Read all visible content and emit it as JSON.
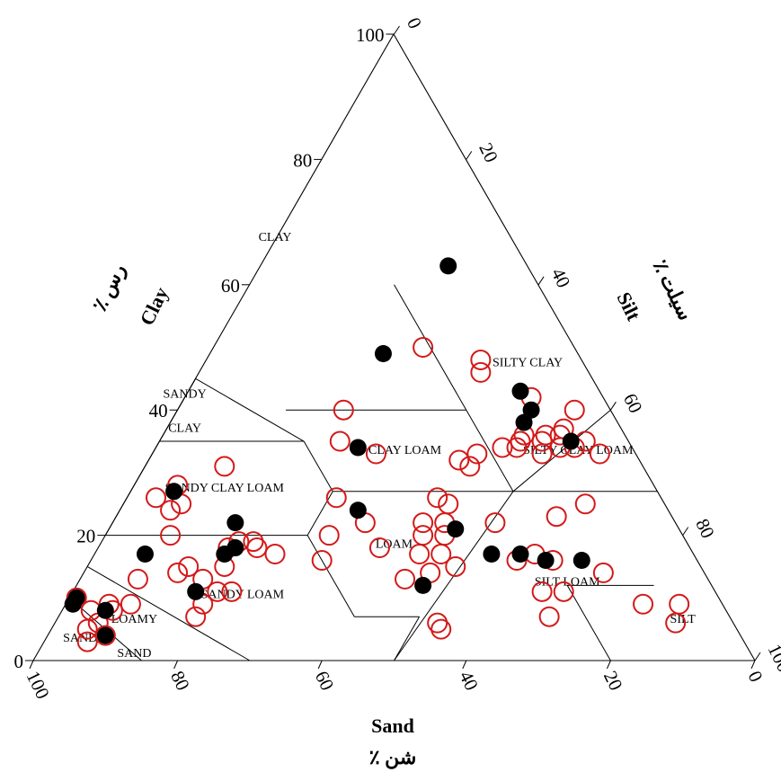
{
  "chart_data": {
    "type": "scatter",
    "subtype": "soil-texture-ternary",
    "axes": {
      "clay": {
        "title": "Clay",
        "title_fa": "رس ٪",
        "ticks": [
          "0",
          "20",
          "40",
          "60",
          "80",
          "100"
        ]
      },
      "silt": {
        "title": "Silt",
        "title_fa": "سیلت ٪",
        "ticks": [
          "0",
          "20",
          "40",
          "60",
          "80",
          "100"
        ]
      },
      "sand": {
        "title": "Sand",
        "title_fa": "شن ٪",
        "ticks": [
          "100",
          "80",
          "60",
          "40",
          "20",
          "0"
        ]
      }
    },
    "regions": [
      {
        "name": "CLAY",
        "lines": [
          "CLAY"
        ],
        "sand": 33,
        "clay": 67
      },
      {
        "name": "SILTY CLAY",
        "lines": [
          "SILTY CLAY"
        ],
        "sand": 8,
        "clay": 47
      },
      {
        "name": "SANDY CLAY",
        "lines": [
          "SANDY",
          "CLAY"
        ],
        "sand": 58,
        "clay": 42
      },
      {
        "name": "CLAY LOAM",
        "lines": [
          "CLAY LOAM"
        ],
        "sand": 32,
        "clay": 33
      },
      {
        "name": "SILTY CLAY LOAM",
        "lines": [
          "SILTY CLAY LOAM"
        ],
        "sand": 8,
        "clay": 33
      },
      {
        "name": "SANDY CLAY LOAM",
        "lines": [
          "SANDY CLAY LOAM"
        ],
        "sand": 60,
        "clay": 27
      },
      {
        "name": "LOAM",
        "lines": [
          "LOAM"
        ],
        "sand": 41,
        "clay": 18
      },
      {
        "name": "SANDY LOAM",
        "lines": [
          "SANDY LOAM"
        ],
        "sand": 66,
        "clay": 10
      },
      {
        "name": "SILT LOAM",
        "lines": [
          "SILT LOAM"
        ],
        "sand": 20,
        "clay": 12
      },
      {
        "name": "LOAMY SAND",
        "lines": [
          "LOAMY",
          "SAND"
        ],
        "sand": 83,
        "clay": 6
      },
      {
        "name": "SAND",
        "lines": [
          "SAND"
        ],
        "sand": 92,
        "clay": 3
      },
      {
        "name": "SILT",
        "lines": [
          "SILT"
        ],
        "sand": 7,
        "clay": 6
      }
    ],
    "series": [
      {
        "marker": "open-circle",
        "color": "#d41919",
        "points": [
          {
            "sand": 21,
            "clay": 50
          },
          {
            "sand": 15,
            "clay": 46
          },
          {
            "sand": 14,
            "clay": 48
          },
          {
            "sand": 10,
            "clay": 42
          },
          {
            "sand": 5,
            "clay": 40
          },
          {
            "sand": 8,
            "clay": 37
          },
          {
            "sand": 9,
            "clay": 36
          },
          {
            "sand": 6,
            "clay": 35
          },
          {
            "sand": 8,
            "clay": 34
          },
          {
            "sand": 5,
            "clay": 33
          },
          {
            "sand": 10,
            "clay": 34
          },
          {
            "sand": 13,
            "clay": 33
          },
          {
            "sand": 12,
            "clay": 35
          },
          {
            "sand": 16,
            "clay": 34
          },
          {
            "sand": 11,
            "clay": 36
          },
          {
            "sand": 15,
            "clay": 35
          },
          {
            "sand": 14,
            "clay": 36
          },
          {
            "sand": 18,
            "clay": 34
          },
          {
            "sand": 22,
            "clay": 33
          },
          {
            "sand": 24,
            "clay": 31
          },
          {
            "sand": 37,
            "clay": 40
          },
          {
            "sand": 40,
            "clay": 35
          },
          {
            "sand": 36,
            "clay": 33
          },
          {
            "sand": 25,
            "clay": 32
          },
          {
            "sand": 58,
            "clay": 31
          },
          {
            "sand": 66,
            "clay": 28
          },
          {
            "sand": 70,
            "clay": 26
          },
          {
            "sand": 67,
            "clay": 25
          },
          {
            "sand": 69,
            "clay": 24
          },
          {
            "sand": 71,
            "clay": 20
          },
          {
            "sand": 62,
            "clay": 19
          },
          {
            "sand": 64,
            "clay": 18
          },
          {
            "sand": 60,
            "clay": 19
          },
          {
            "sand": 60,
            "clay": 18
          },
          {
            "sand": 58,
            "clay": 17
          },
          {
            "sand": 66,
            "clay": 15
          },
          {
            "sand": 71,
            "clay": 15
          },
          {
            "sand": 73,
            "clay": 14
          },
          {
            "sand": 70,
            "clay": 13
          },
          {
            "sand": 69,
            "clay": 11
          },
          {
            "sand": 67,
            "clay": 11
          },
          {
            "sand": 72,
            "clay": 9
          },
          {
            "sand": 74,
            "clay": 7
          },
          {
            "sand": 79,
            "clay": 13
          },
          {
            "sand": 82,
            "clay": 9
          },
          {
            "sand": 85,
            "clay": 8
          },
          {
            "sand": 88,
            "clay": 6
          },
          {
            "sand": 90,
            "clay": 5
          },
          {
            "sand": 91,
            "clay": 3
          },
          {
            "sand": 88,
            "clay": 8
          },
          {
            "sand": 89,
            "clay": 10
          },
          {
            "sand": 85,
            "clay": 9
          },
          {
            "sand": 88,
            "clay": 4
          },
          {
            "sand": 52,
            "clay": 16
          },
          {
            "sand": 49,
            "clay": 20
          },
          {
            "sand": 45,
            "clay": 26
          },
          {
            "sand": 43,
            "clay": 22
          },
          {
            "sand": 43,
            "clay": 18
          },
          {
            "sand": 35,
            "clay": 22
          },
          {
            "sand": 38,
            "clay": 17
          },
          {
            "sand": 38,
            "clay": 14
          },
          {
            "sand": 35,
            "clay": 17
          },
          {
            "sand": 36,
            "clay": 20
          },
          {
            "sand": 34,
            "clay": 15
          },
          {
            "sand": 32,
            "clay": 22
          },
          {
            "sand": 33,
            "clay": 20
          },
          {
            "sand": 30,
            "clay": 25
          },
          {
            "sand": 31,
            "clay": 26
          },
          {
            "sand": 25,
            "clay": 22
          },
          {
            "sand": 20,
            "clay": 16
          },
          {
            "sand": 16,
            "clay": 23
          },
          {
            "sand": 11,
            "clay": 25
          },
          {
            "sand": 22,
            "clay": 17
          },
          {
            "sand": 25,
            "clay": 16
          },
          {
            "sand": 24,
            "clay": 11
          },
          {
            "sand": 21,
            "clay": 11
          },
          {
            "sand": 25,
            "clay": 7
          },
          {
            "sand": 14,
            "clay": 14
          },
          {
            "sand": 11,
            "clay": 9
          },
          {
            "sand": 41,
            "clay": 5
          },
          {
            "sand": 41,
            "clay": 6
          },
          {
            "sand": 42,
            "clay": 13
          },
          {
            "sand": 8,
            "clay": 6
          },
          {
            "sand": 6,
            "clay": 9
          }
        ]
      },
      {
        "marker": "filled-circle",
        "color": "#000000",
        "points": [
          {
            "sand": 11,
            "clay": 63
          },
          {
            "sand": 27,
            "clay": 49
          },
          {
            "sand": 11,
            "clay": 43
          },
          {
            "sand": 11,
            "clay": 40
          },
          {
            "sand": 13,
            "clay": 38
          },
          {
            "sand": 8,
            "clay": 35
          },
          {
            "sand": 38,
            "clay": 34
          },
          {
            "sand": 43,
            "clay": 24
          },
          {
            "sand": 67,
            "clay": 27
          },
          {
            "sand": 61,
            "clay": 22
          },
          {
            "sand": 63,
            "clay": 18
          },
          {
            "sand": 65,
            "clay": 17
          },
          {
            "sand": 76,
            "clay": 17
          },
          {
            "sand": 72,
            "clay": 11
          },
          {
            "sand": 89,
            "clay": 10
          },
          {
            "sand": 90,
            "clay": 9
          },
          {
            "sand": 86,
            "clay": 8
          },
          {
            "sand": 88,
            "clay": 4
          },
          {
            "sand": 31,
            "clay": 21
          },
          {
            "sand": 28,
            "clay": 17
          },
          {
            "sand": 24,
            "clay": 17
          },
          {
            "sand": 21,
            "clay": 16
          },
          {
            "sand": 16,
            "clay": 16
          },
          {
            "sand": 40,
            "clay": 12
          }
        ]
      }
    ]
  }
}
